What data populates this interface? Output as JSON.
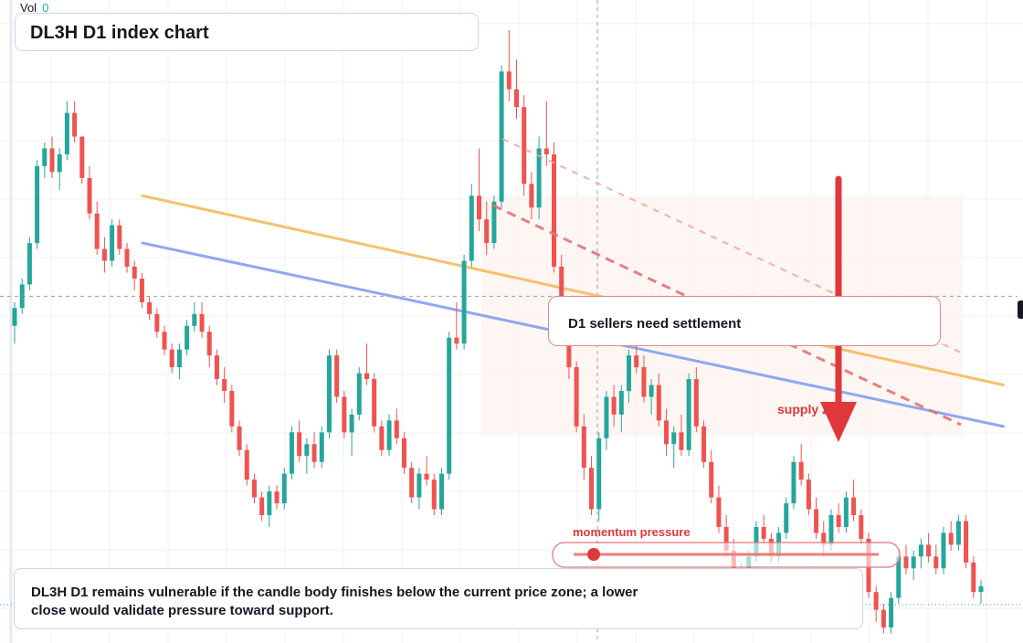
{
  "header": {
    "title": "DL3H D1 index chart"
  },
  "volume": {
    "label": "Vol",
    "value": "0"
  },
  "annotations": {
    "sellers_note": "D1 sellers need settlement",
    "supply_zone": "supply zone",
    "momentum": "momentum pressure",
    "summary": "DL3H D1 remains vulnerable if the candle body finishes below the current price zone; a lower close would validate pressure toward support."
  },
  "colors": {
    "up": "#26a69a",
    "down": "#ef5350",
    "accent_red": "#e0373c",
    "trend_orange": "#f7c06e",
    "trend_blue": "#8fa8f0"
  },
  "chart_data": {
    "type": "candlestick",
    "title": "DL3H D1 index chart",
    "grid": true,
    "price_scale": [
      0,
      100
    ],
    "candles": [
      {
        "o": 48,
        "h": 52,
        "l": 45,
        "c": 51
      },
      {
        "o": 51,
        "h": 56,
        "l": 50,
        "c": 55
      },
      {
        "o": 55,
        "h": 63,
        "l": 54,
        "c": 62
      },
      {
        "o": 62,
        "h": 76,
        "l": 61,
        "c": 75
      },
      {
        "o": 75,
        "h": 79,
        "l": 73,
        "c": 78
      },
      {
        "o": 78,
        "h": 80,
        "l": 73,
        "c": 74
      },
      {
        "o": 74,
        "h": 78,
        "l": 71,
        "c": 77
      },
      {
        "o": 77,
        "h": 86,
        "l": 76,
        "c": 84
      },
      {
        "o": 84,
        "h": 86,
        "l": 79,
        "c": 80
      },
      {
        "o": 80,
        "h": 79,
        "l": 72,
        "c": 73
      },
      {
        "o": 73,
        "h": 75,
        "l": 66,
        "c": 67
      },
      {
        "o": 67,
        "h": 69,
        "l": 60,
        "c": 61
      },
      {
        "o": 61,
        "h": 63,
        "l": 57,
        "c": 59
      },
      {
        "o": 59,
        "h": 66,
        "l": 58,
        "c": 65
      },
      {
        "o": 65,
        "h": 66,
        "l": 60,
        "c": 61
      },
      {
        "o": 61,
        "h": 62,
        "l": 57,
        "c": 58
      },
      {
        "o": 58,
        "h": 59,
        "l": 54,
        "c": 56
      },
      {
        "o": 56,
        "h": 57,
        "l": 51,
        "c": 52
      },
      {
        "o": 52,
        "h": 53,
        "l": 49,
        "c": 50
      },
      {
        "o": 50,
        "h": 51,
        "l": 46,
        "c": 47
      },
      {
        "o": 47,
        "h": 48,
        "l": 43,
        "c": 44
      },
      {
        "o": 44,
        "h": 45,
        "l": 40,
        "c": 41
      },
      {
        "o": 41,
        "h": 45,
        "l": 39,
        "c": 44
      },
      {
        "o": 44,
        "h": 49,
        "l": 43,
        "c": 48
      },
      {
        "o": 48,
        "h": 52,
        "l": 47,
        "c": 50
      },
      {
        "o": 50,
        "h": 52,
        "l": 46,
        "c": 47
      },
      {
        "o": 47,
        "h": 48,
        "l": 41,
        "c": 43
      },
      {
        "o": 43,
        "h": 44,
        "l": 38,
        "c": 39
      },
      {
        "o": 39,
        "h": 41,
        "l": 35,
        "c": 37
      },
      {
        "o": 37,
        "h": 38,
        "l": 30,
        "c": 31
      },
      {
        "o": 31,
        "h": 32,
        "l": 26,
        "c": 27
      },
      {
        "o": 27,
        "h": 28,
        "l": 21,
        "c": 22
      },
      {
        "o": 22,
        "h": 23,
        "l": 18,
        "c": 19
      },
      {
        "o": 19,
        "h": 20,
        "l": 15,
        "c": 16
      },
      {
        "o": 16,
        "h": 21,
        "l": 14,
        "c": 20
      },
      {
        "o": 20,
        "h": 21,
        "l": 17,
        "c": 18
      },
      {
        "o": 18,
        "h": 24,
        "l": 17,
        "c": 23
      },
      {
        "o": 23,
        "h": 31,
        "l": 22,
        "c": 30
      },
      {
        "o": 30,
        "h": 32,
        "l": 25,
        "c": 26
      },
      {
        "o": 26,
        "h": 29,
        "l": 23,
        "c": 28
      },
      {
        "o": 28,
        "h": 30,
        "l": 24,
        "c": 25
      },
      {
        "o": 25,
        "h": 31,
        "l": 24,
        "c": 30
      },
      {
        "o": 30,
        "h": 44,
        "l": 29,
        "c": 43
      },
      {
        "o": 43,
        "h": 44,
        "l": 35,
        "c": 36
      },
      {
        "o": 36,
        "h": 37,
        "l": 29,
        "c": 30
      },
      {
        "o": 30,
        "h": 34,
        "l": 26,
        "c": 33
      },
      {
        "o": 33,
        "h": 41,
        "l": 32,
        "c": 40
      },
      {
        "o": 40,
        "h": 45,
        "l": 38,
        "c": 39
      },
      {
        "o": 39,
        "h": 40,
        "l": 30,
        "c": 31
      },
      {
        "o": 31,
        "h": 32,
        "l": 26,
        "c": 27
      },
      {
        "o": 27,
        "h": 33,
        "l": 26,
        "c": 32
      },
      {
        "o": 32,
        "h": 34,
        "l": 28,
        "c": 29
      },
      {
        "o": 29,
        "h": 30,
        "l": 23,
        "c": 24
      },
      {
        "o": 24,
        "h": 25,
        "l": 18,
        "c": 19
      },
      {
        "o": 19,
        "h": 24,
        "l": 17,
        "c": 23
      },
      {
        "o": 23,
        "h": 26,
        "l": 21,
        "c": 22
      },
      {
        "o": 22,
        "h": 23,
        "l": 16,
        "c": 17
      },
      {
        "o": 17,
        "h": 24,
        "l": 16,
        "c": 23
      },
      {
        "o": 23,
        "h": 47,
        "l": 22,
        "c": 46
      },
      {
        "o": 46,
        "h": 52,
        "l": 44,
        "c": 45
      },
      {
        "o": 45,
        "h": 60,
        "l": 44,
        "c": 59
      },
      {
        "o": 59,
        "h": 72,
        "l": 58,
        "c": 70
      },
      {
        "o": 70,
        "h": 78,
        "l": 64,
        "c": 66
      },
      {
        "o": 66,
        "h": 69,
        "l": 60,
        "c": 62
      },
      {
        "o": 62,
        "h": 70,
        "l": 61,
        "c": 69
      },
      {
        "o": 69,
        "h": 92,
        "l": 68,
        "c": 91
      },
      {
        "o": 91,
        "h": 98,
        "l": 86,
        "c": 88
      },
      {
        "o": 88,
        "h": 93,
        "l": 83,
        "c": 85
      },
      {
        "o": 85,
        "h": 87,
        "l": 70,
        "c": 72
      },
      {
        "o": 72,
        "h": 74,
        "l": 66,
        "c": 68
      },
      {
        "o": 68,
        "h": 80,
        "l": 66,
        "c": 78
      },
      {
        "o": 78,
        "h": 86,
        "l": 75,
        "c": 77
      },
      {
        "o": 77,
        "h": 79,
        "l": 57,
        "c": 58
      },
      {
        "o": 58,
        "h": 60,
        "l": 48,
        "c": 50
      },
      {
        "o": 50,
        "h": 52,
        "l": 39,
        "c": 41
      },
      {
        "o": 41,
        "h": 42,
        "l": 30,
        "c": 31
      },
      {
        "o": 31,
        "h": 33,
        "l": 22,
        "c": 24
      },
      {
        "o": 24,
        "h": 26,
        "l": 16,
        "c": 17
      },
      {
        "o": 17,
        "h": 30,
        "l": 15,
        "c": 29
      },
      {
        "o": 29,
        "h": 37,
        "l": 27,
        "c": 36
      },
      {
        "o": 36,
        "h": 38,
        "l": 31,
        "c": 33
      },
      {
        "o": 33,
        "h": 38,
        "l": 30,
        "c": 37
      },
      {
        "o": 37,
        "h": 44,
        "l": 35,
        "c": 43
      },
      {
        "o": 43,
        "h": 48,
        "l": 40,
        "c": 41
      },
      {
        "o": 41,
        "h": 43,
        "l": 35,
        "c": 36
      },
      {
        "o": 36,
        "h": 39,
        "l": 33,
        "c": 38
      },
      {
        "o": 38,
        "h": 40,
        "l": 31,
        "c": 32
      },
      {
        "o": 32,
        "h": 34,
        "l": 26,
        "c": 28
      },
      {
        "o": 28,
        "h": 31,
        "l": 24,
        "c": 30
      },
      {
        "o": 30,
        "h": 33,
        "l": 26,
        "c": 27
      },
      {
        "o": 27,
        "h": 40,
        "l": 26,
        "c": 39
      },
      {
        "o": 39,
        "h": 41,
        "l": 30,
        "c": 31
      },
      {
        "o": 31,
        "h": 32,
        "l": 24,
        "c": 25
      },
      {
        "o": 25,
        "h": 27,
        "l": 18,
        "c": 19
      },
      {
        "o": 19,
        "h": 21,
        "l": 13,
        "c": 14
      },
      {
        "o": 14,
        "h": 16,
        "l": 9,
        "c": 10
      },
      {
        "o": 10,
        "h": 12,
        "l": 5,
        "c": 6
      },
      {
        "o": 6,
        "h": 8,
        "l": 2,
        "c": 4
      },
      {
        "o": 4,
        "h": 10,
        "l": 3,
        "c": 9
      },
      {
        "o": 9,
        "h": 15,
        "l": 8,
        "c": 14
      },
      {
        "o": 14,
        "h": 16,
        "l": 11,
        "c": 12
      },
      {
        "o": 12,
        "h": 13,
        "l": 8,
        "c": 9
      },
      {
        "o": 9,
        "h": 14,
        "l": 8,
        "c": 13
      },
      {
        "o": 13,
        "h": 19,
        "l": 12,
        "c": 18
      },
      {
        "o": 18,
        "h": 26,
        "l": 17,
        "c": 25
      },
      {
        "o": 25,
        "h": 28,
        "l": 21,
        "c": 22
      },
      {
        "o": 22,
        "h": 23,
        "l": 16,
        "c": 17
      },
      {
        "o": 17,
        "h": 19,
        "l": 12,
        "c": 13
      },
      {
        "o": 13,
        "h": 15,
        "l": 9,
        "c": 11
      },
      {
        "o": 11,
        "h": 17,
        "l": 10,
        "c": 16
      },
      {
        "o": 16,
        "h": 18,
        "l": 13,
        "c": 14
      },
      {
        "o": 14,
        "h": 20,
        "l": 13,
        "c": 19
      },
      {
        "o": 19,
        "h": 22,
        "l": 15,
        "c": 16
      },
      {
        "o": 16,
        "h": 17,
        "l": 11,
        "c": 12
      },
      {
        "o": 12,
        "h": 13,
        "l": 2,
        "c": 3
      },
      {
        "o": 3,
        "h": 4,
        "l": -2,
        "c": 0
      },
      {
        "o": 0,
        "h": 1,
        "l": -4,
        "c": -3
      },
      {
        "o": -3,
        "h": 3,
        "l": -4,
        "c": 2
      },
      {
        "o": 2,
        "h": 10,
        "l": 1,
        "c": 9
      },
      {
        "o": 9,
        "h": 11,
        "l": 6,
        "c": 7
      },
      {
        "o": 7,
        "h": 10,
        "l": 5,
        "c": 9
      },
      {
        "o": 9,
        "h": 12,
        "l": 7,
        "c": 11
      },
      {
        "o": 11,
        "h": 13,
        "l": 8,
        "c": 9
      },
      {
        "o": 9,
        "h": 11,
        "l": 6,
        "c": 7
      },
      {
        "o": 7,
        "h": 14,
        "l": 6,
        "c": 13
      },
      {
        "o": 13,
        "h": 15,
        "l": 10,
        "c": 11
      },
      {
        "o": 11,
        "h": 16,
        "l": 10,
        "c": 15
      },
      {
        "o": 15,
        "h": 16,
        "l": 7,
        "c": 8
      },
      {
        "o": 8,
        "h": 9,
        "l": 2,
        "c": 3
      },
      {
        "o": 3,
        "h": 5,
        "l": 1,
        "c": 4
      }
    ],
    "trendlines": [
      {
        "name": "",
        "color": "#f7c06e",
        "from": [
          0,
          70
        ],
        "to": [
          132,
          38
        ]
      },
      {
        "name": "",
        "color": "#8fa8f0",
        "from": [
          0,
          62
        ],
        "to": [
          132,
          31
        ]
      }
    ],
    "current_price_level": 53
  }
}
